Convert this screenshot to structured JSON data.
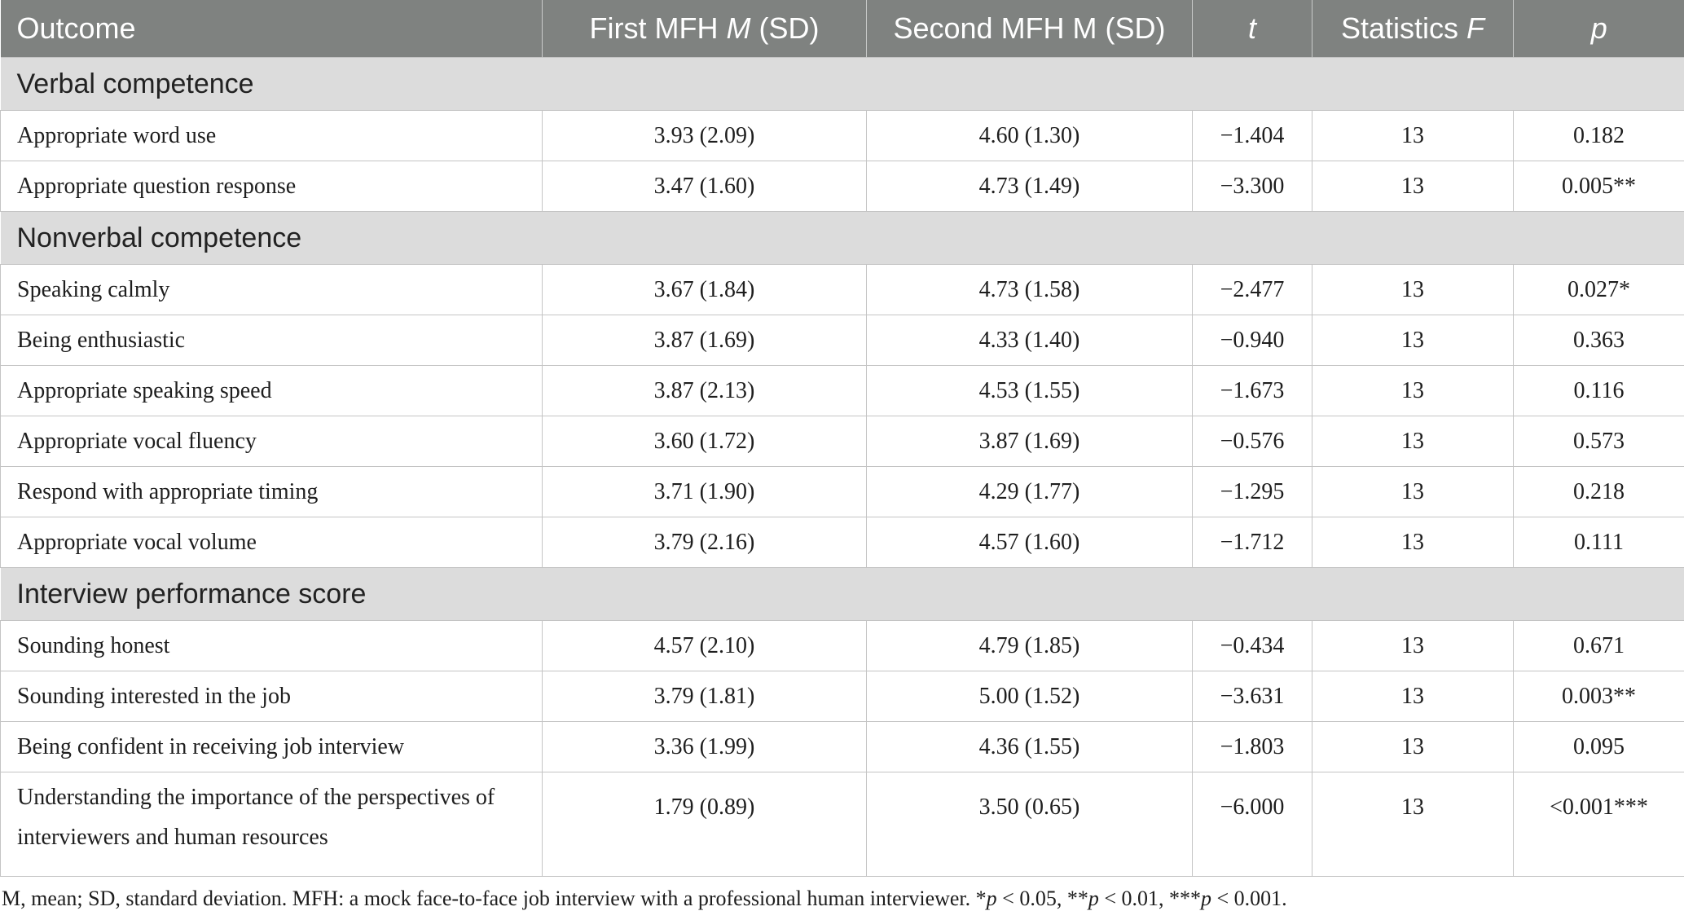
{
  "header": {
    "col0": "Outcome",
    "col1_pre": "First MFH ",
    "col1_em": "M",
    "col1_post": " (SD)",
    "col2": "Second MFH M (SD)",
    "col3_em": "t",
    "col4_pre": "Statistics ",
    "col4_em": "F",
    "col5_em": "p"
  },
  "sections": [
    {
      "title": "Verbal competence",
      "rows": [
        {
          "outcome": "Appropriate word use",
          "first": "3.93 (2.09)",
          "second": "4.60 (1.30)",
          "t": "−1.404",
          "f": "13",
          "p": "0.182"
        },
        {
          "outcome": "Appropriate question response",
          "first": "3.47 (1.60)",
          "second": "4.73 (1.49)",
          "t": "−3.300",
          "f": "13",
          "p": "0.005**"
        }
      ]
    },
    {
      "title": "Nonverbal competence",
      "rows": [
        {
          "outcome": "Speaking calmly",
          "first": "3.67 (1.84)",
          "second": "4.73 (1.58)",
          "t": "−2.477",
          "f": "13",
          "p": "0.027*"
        },
        {
          "outcome": "Being enthusiastic",
          "first": "3.87 (1.69)",
          "second": "4.33 (1.40)",
          "t": "−0.940",
          "f": "13",
          "p": "0.363"
        },
        {
          "outcome": "Appropriate speaking speed",
          "first": "3.87 (2.13)",
          "second": "4.53 (1.55)",
          "t": "−1.673",
          "f": "13",
          "p": "0.116"
        },
        {
          "outcome": "Appropriate vocal fluency",
          "first": "3.60 (1.72)",
          "second": "3.87 (1.69)",
          "t": "−0.576",
          "f": "13",
          "p": "0.573"
        },
        {
          "outcome": "Respond with appropriate timing",
          "first": "3.71 (1.90)",
          "second": "4.29 (1.77)",
          "t": "−1.295",
          "f": "13",
          "p": "0.218"
        },
        {
          "outcome": "Appropriate vocal volume",
          "first": "3.79 (2.16)",
          "second": "4.57 (1.60)",
          "t": "−1.712",
          "f": "13",
          "p": "0.111"
        }
      ]
    },
    {
      "title": "Interview performance score",
      "rows": [
        {
          "outcome": "Sounding honest",
          "first": "4.57 (2.10)",
          "second": "4.79 (1.85)",
          "t": "−0.434",
          "f": "13",
          "p": "0.671"
        },
        {
          "outcome": "Sounding interested in the job",
          "first": "3.79 (1.81)",
          "second": "5.00 (1.52)",
          "t": "−3.631",
          "f": "13",
          "p": "0.003**"
        },
        {
          "outcome": "Being confident in receiving job interview",
          "first": "3.36 (1.99)",
          "second": "4.36 (1.55)",
          "t": "−1.803",
          "f": "13",
          "p": "0.095"
        },
        {
          "outcome": "Understanding the importance of the perspectives of interviewers and human resources",
          "first": "1.79 (0.89)",
          "second": "3.50 (0.65)",
          "t": "−6.000",
          "f": "13",
          "p": "<0.001***"
        }
      ]
    }
  ],
  "footnote": {
    "part1": "M, mean; SD, standard deviation. MFH: a mock face-to-face job interview with a professional human interviewer. *",
    "p1": "p",
    "part2": " < 0.05, **",
    "p2": "p",
    "part3": " < 0.01, ***",
    "p3": "p",
    "part4": " < 0.001."
  }
}
